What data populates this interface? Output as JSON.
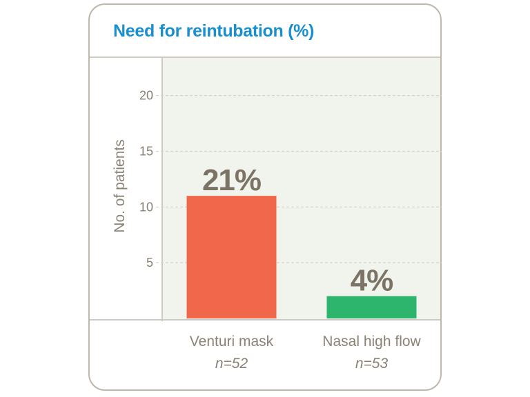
{
  "chart_data": {
    "type": "bar",
    "title": "Need for reintubation (%)",
    "ylabel": "No. of patients",
    "xlabel": "",
    "ylim": [
      0,
      23.5
    ],
    "yticks": [
      5,
      10,
      15,
      20
    ],
    "grid": true,
    "categories": [
      "Venturi mask",
      "Nasal high flow"
    ],
    "category_sublabels": [
      "n=52",
      "n=53"
    ],
    "values": [
      11,
      2
    ],
    "data_labels": [
      "21%",
      "4%"
    ],
    "colors": [
      "#f0674b",
      "#2db46d"
    ]
  }
}
